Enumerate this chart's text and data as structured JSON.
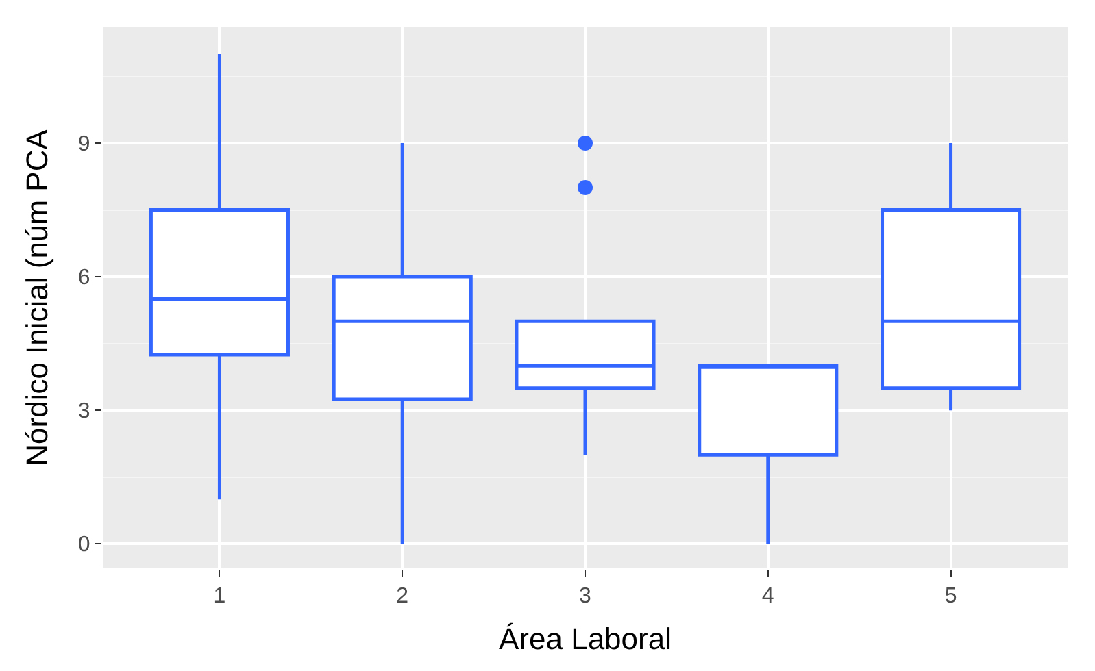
{
  "chart_data": {
    "type": "box",
    "xlabel": "Área Laboral",
    "ylabel": "Nórdico Inicial (núm PCA",
    "categories": [
      "1",
      "2",
      "3",
      "4",
      "5"
    ],
    "boxes": [
      {
        "low": 1,
        "q1": 4.25,
        "median": 5.5,
        "q3": 7.5,
        "high": 11
      },
      {
        "low": 0,
        "q1": 3.25,
        "median": 5,
        "q3": 6,
        "high": 9
      },
      {
        "low": 2,
        "q1": 3.5,
        "median": 4,
        "q3": 5,
        "high": 5,
        "outliers": [
          8,
          9
        ]
      },
      {
        "low": 0,
        "q1": 2,
        "median": 4,
        "q3": 4,
        "high": 4
      },
      {
        "low": 3,
        "q1": 3.5,
        "median": 5,
        "q3": 7.5,
        "high": 9
      }
    ],
    "color": "#3366ff",
    "ylim": [
      -0.55,
      11.6
    ],
    "yticks": [
      0,
      3,
      6,
      9
    ],
    "grid": true
  }
}
